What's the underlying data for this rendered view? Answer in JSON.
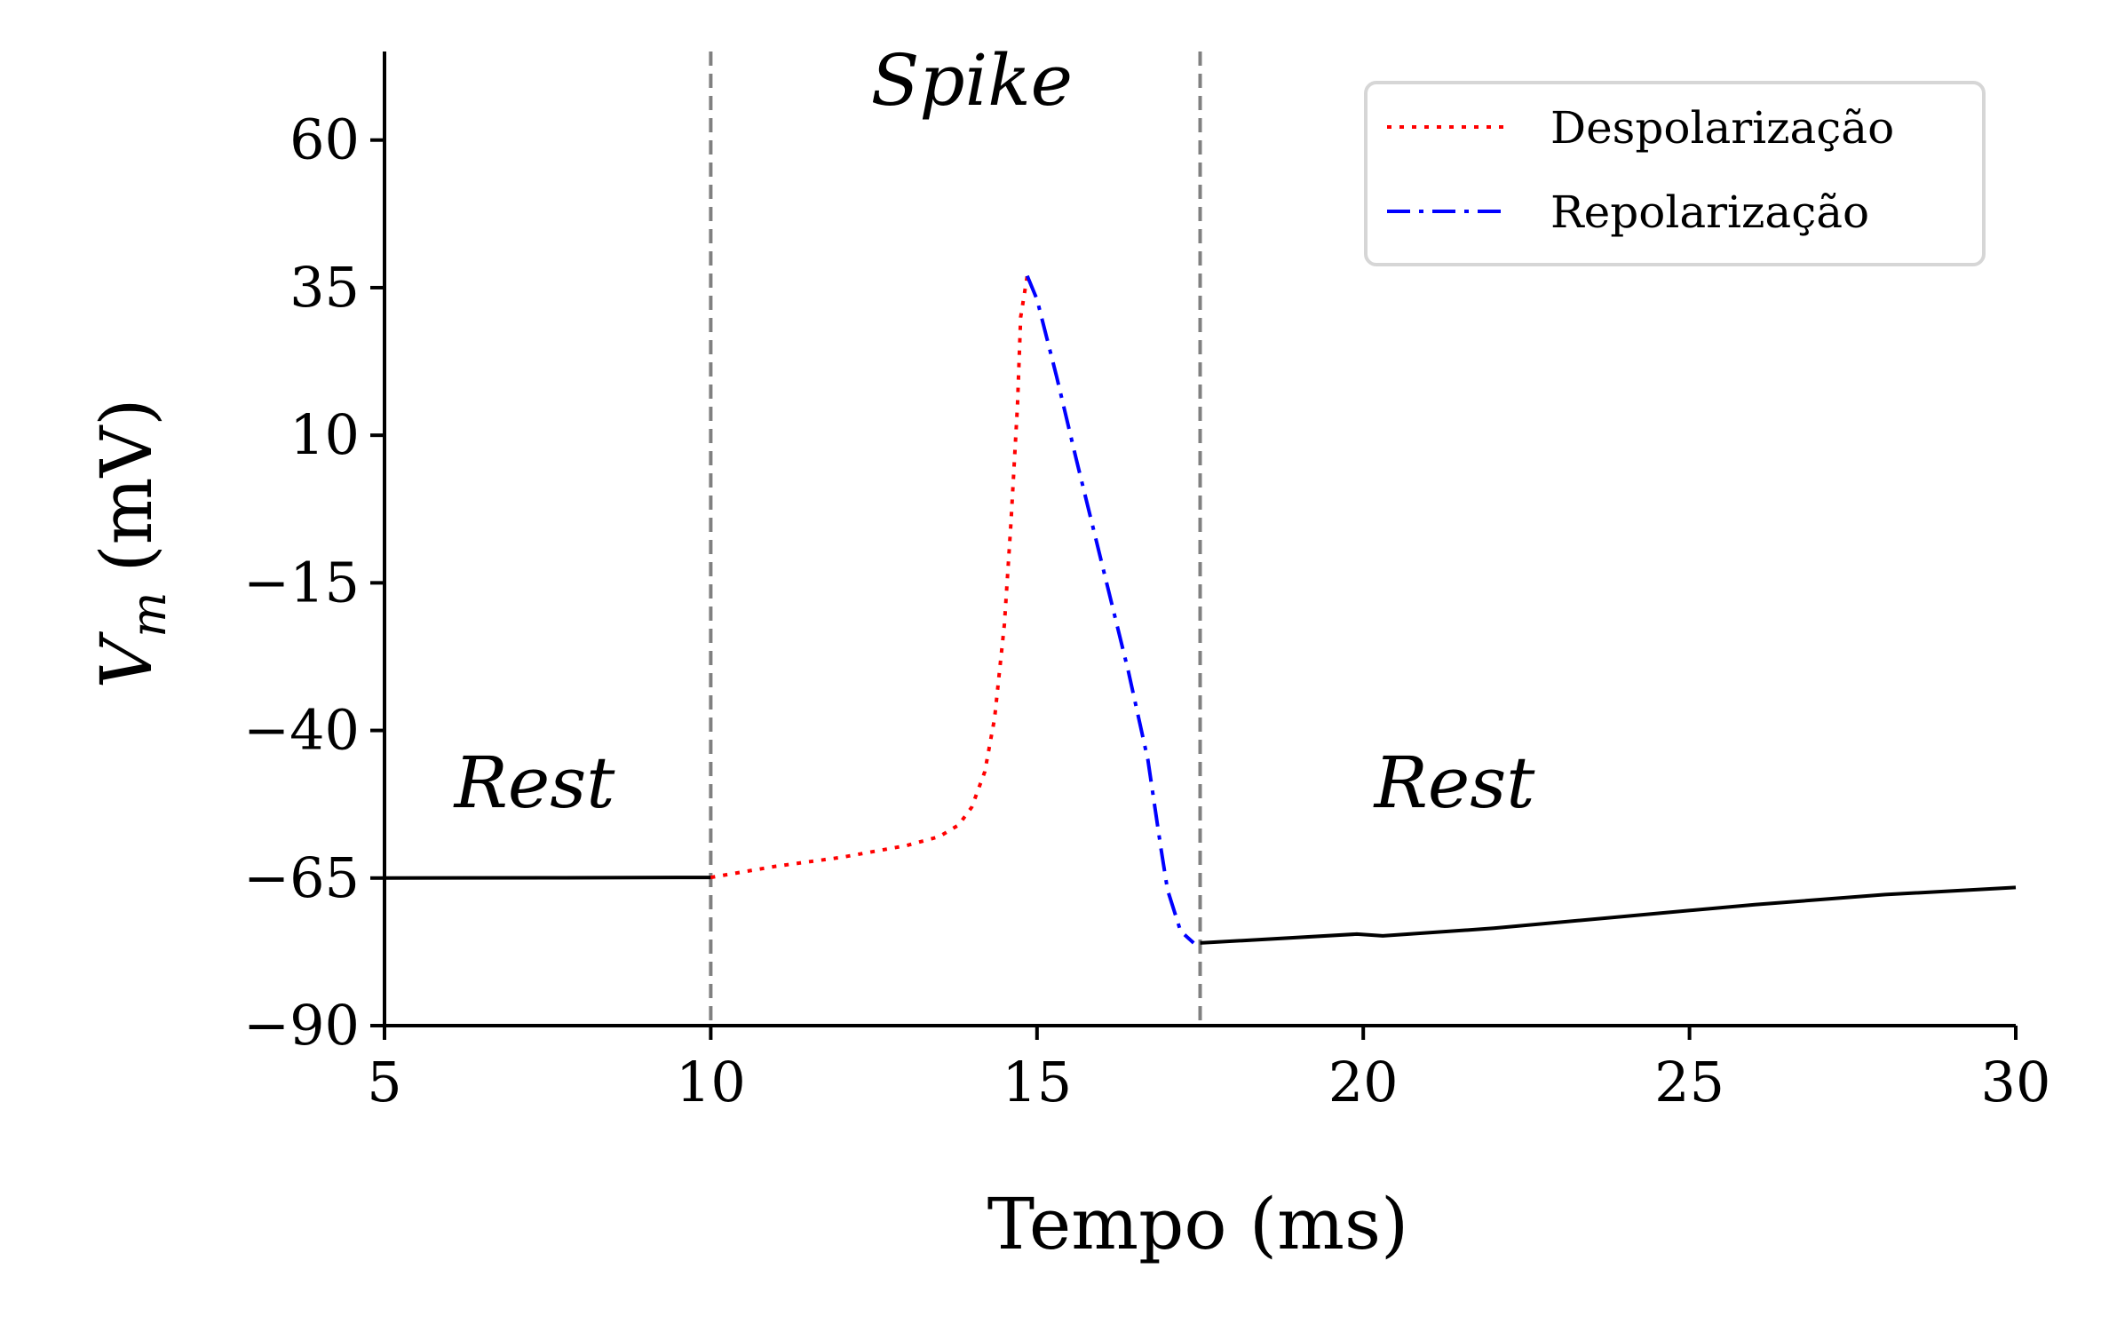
{
  "chart_data": {
    "type": "line",
    "xlabel": "Tempo (ms)",
    "ylabel_main": "V",
    "ylabel_sub": "m",
    "ylabel_unit": "(mV)",
    "xlim": [
      5,
      30
    ],
    "ylim": [
      -90,
      75
    ],
    "xticks": [
      5,
      10,
      15,
      20,
      25,
      30
    ],
    "yticks": [
      -90,
      -65,
      -40,
      -15,
      10,
      35,
      60
    ],
    "xtick_labels": [
      "5",
      "10",
      "15",
      "20",
      "25",
      "30"
    ],
    "ytick_labels": [
      "−90",
      "−65",
      "−40",
      "−15",
      "10",
      "35",
      "60"
    ],
    "grid": false,
    "legend_position": "top-right",
    "vlines": [
      {
        "x": 10,
        "color": "#808080",
        "style": "dashed"
      },
      {
        "x": 17.5,
        "color": "#808080",
        "style": "dashed"
      }
    ],
    "annotations": [
      {
        "text": "Rest",
        "x": 7.3,
        "y": -53
      },
      {
        "text": "Spike",
        "x": 14.0,
        "y": 66
      },
      {
        "text": "Rest",
        "x": 21.4,
        "y": -53
      }
    ],
    "series": [
      {
        "style": "solid",
        "color": "#000000",
        "points": [
          [
            5,
            -65.0
          ],
          [
            7.5,
            -64.95
          ],
          [
            10,
            -64.9
          ]
        ]
      },
      {
        "name": "Despolarização",
        "style": "dotted",
        "color": "#ff0000",
        "points": [
          [
            10,
            -64.9
          ],
          [
            11,
            -63.0
          ],
          [
            12,
            -61.5
          ],
          [
            13,
            -59.5
          ],
          [
            13.5,
            -58.0
          ],
          [
            13.8,
            -56.0
          ],
          [
            14.0,
            -53.0
          ],
          [
            14.2,
            -47.0
          ],
          [
            14.35,
            -38.0
          ],
          [
            14.5,
            -22.0
          ],
          [
            14.6,
            -5.0
          ],
          [
            14.7,
            15.0
          ],
          [
            14.75,
            30.0
          ],
          [
            14.85,
            37.0
          ]
        ]
      },
      {
        "name": "Repolarização",
        "style": "dashdot",
        "color": "#0000ff",
        "points": [
          [
            14.85,
            37.0
          ],
          [
            15.0,
            33.0
          ],
          [
            15.3,
            20.0
          ],
          [
            15.6,
            6.0
          ],
          [
            16.0,
            -12.0
          ],
          [
            16.4,
            -30.0
          ],
          [
            16.7,
            -45.0
          ],
          [
            16.9,
            -60.0
          ],
          [
            17.0,
            -67.0
          ],
          [
            17.2,
            -74.0
          ],
          [
            17.4,
            -76.0
          ]
        ]
      },
      {
        "style": "solid",
        "color": "#000000",
        "points": [
          [
            17.5,
            -76.0
          ],
          [
            19.9,
            -74.5
          ],
          [
            20.3,
            -74.8
          ],
          [
            22,
            -73.5
          ],
          [
            24,
            -71.5
          ],
          [
            26,
            -69.5
          ],
          [
            28,
            -67.8
          ],
          [
            30,
            -66.6
          ]
        ]
      }
    ]
  }
}
